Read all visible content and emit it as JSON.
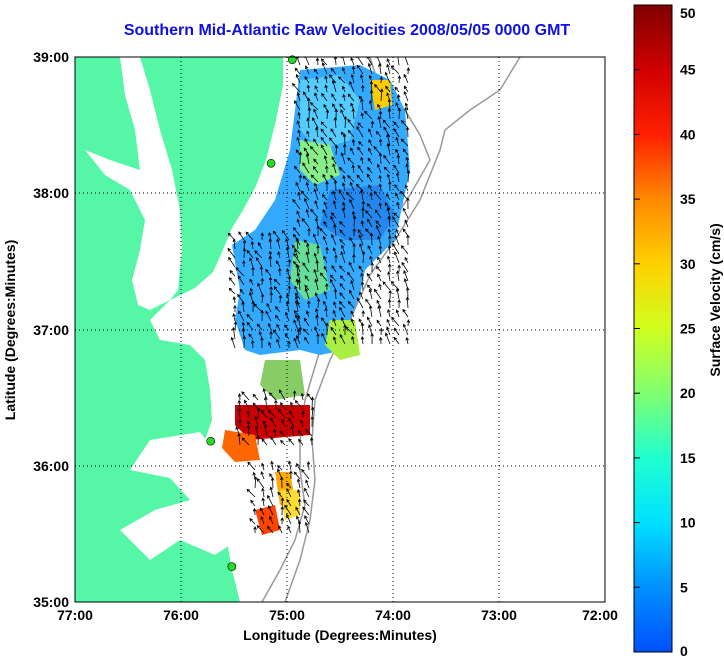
{
  "title": "Southern Mid-Atlantic Raw Velocities 2008/05/05 0000 GMT",
  "xlabel": "Longitude (Degrees:Minutes)",
  "ylabel": "Latitude (Degrees:Minutes)",
  "colorbar": {
    "label": "Surface Velocity (cm/s)",
    "min": 0,
    "max": 50,
    "ticks": [
      "0",
      "5",
      "10",
      "15",
      "20",
      "25",
      "30",
      "35",
      "40",
      "45",
      "50"
    ]
  },
  "axes": {
    "lon_range": [
      -77,
      -72
    ],
    "lat_range": [
      35,
      39
    ],
    "x_ticks": [
      "77:00",
      "76:00",
      "75:00",
      "74:00",
      "73:00",
      "72:00"
    ],
    "y_ticks": [
      "35:00",
      "36:00",
      "37:00",
      "38:00",
      "39:00"
    ],
    "grid": "dotted"
  },
  "colors": {
    "land": "#55f7a6",
    "water": "#ffffff",
    "title": "#1010e0",
    "station": "#22dd22"
  },
  "stations": [
    {
      "lon": -74.95,
      "lat": 38.98
    },
    {
      "lon": -75.15,
      "lat": 38.22
    },
    {
      "lon": -75.72,
      "lat": 36.18
    },
    {
      "lon": -75.52,
      "lat": 35.26
    }
  ]
}
